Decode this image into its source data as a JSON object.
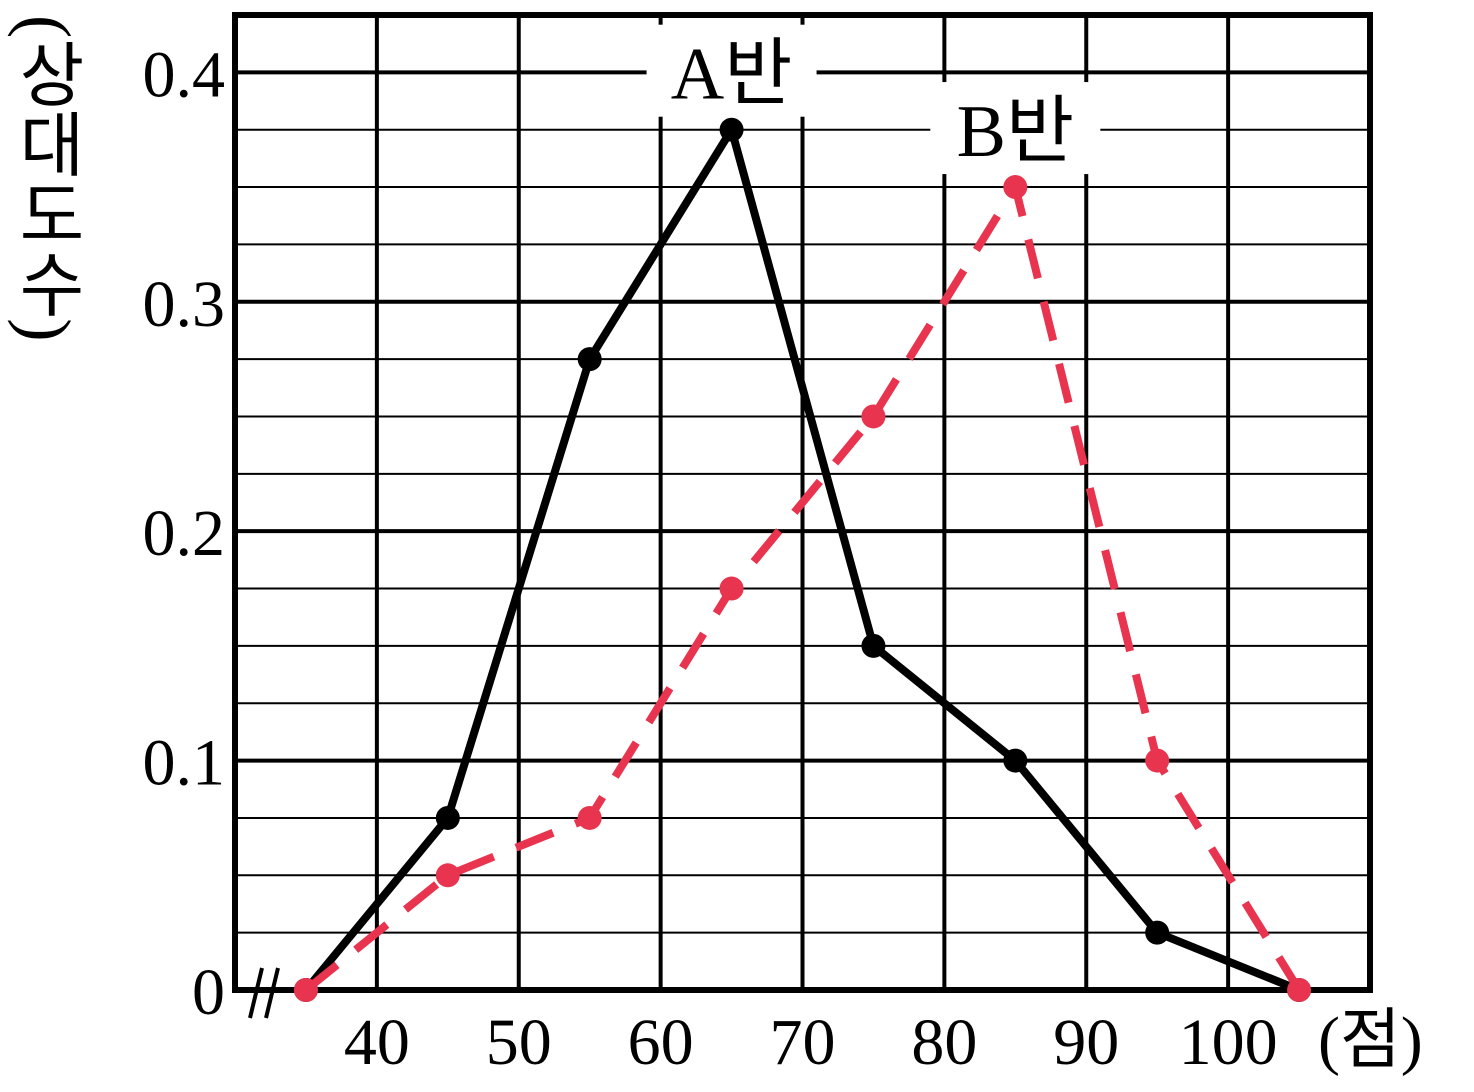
{
  "chart_data": {
    "type": "line",
    "x": [
      35,
      45,
      55,
      65,
      75,
      85,
      95,
      105
    ],
    "series": [
      {
        "name": "A반",
        "color": "#000000",
        "dashed": false,
        "values": [
          0,
          0.075,
          0.275,
          0.375,
          0.15,
          0.1,
          0.025,
          0
        ]
      },
      {
        "name": "B반",
        "color": "#e8344e",
        "dashed": true,
        "values": [
          0,
          0.05,
          0.075,
          0.175,
          0.25,
          0.35,
          0.1,
          0
        ]
      }
    ],
    "xlim": [
      30,
      110
    ],
    "xticks": [
      40,
      50,
      60,
      70,
      80,
      90,
      100
    ],
    "ylim": [
      0,
      0.425
    ],
    "yticks": [
      0,
      0.1,
      0.2,
      0.3,
      0.4
    ],
    "minor_yticks": [
      0.025,
      0.05,
      0.075,
      0.125,
      0.15,
      0.175,
      0.225,
      0.25,
      0.275,
      0.325,
      0.35,
      0.375
    ],
    "xlabel": "(점)",
    "ylabel": "(상대도수)",
    "grid": true
  }
}
